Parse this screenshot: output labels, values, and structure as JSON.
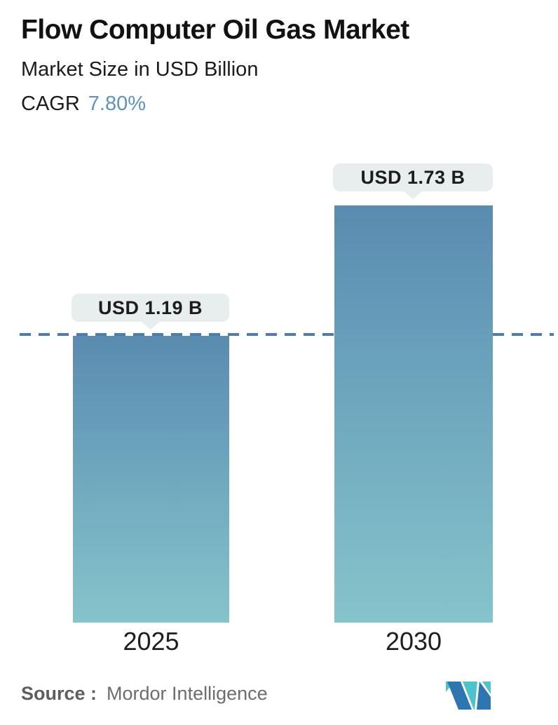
{
  "header": {
    "title": "Flow Computer Oil Gas Market",
    "subtitle": "Market Size in USD Billion",
    "cagr_label": "CAGR",
    "cagr_value": "7.80%"
  },
  "chart_data": {
    "type": "bar",
    "title": "Flow Computer Oil Gas Market",
    "subtitle": "Market Size in USD Billion",
    "cagr": "7.80%",
    "unit": "USD Billion",
    "categories": [
      "2025",
      "2030"
    ],
    "values": [
      1.19,
      1.73
    ],
    "value_labels": [
      "USD 1.19 B",
      "USD 1.73 B"
    ],
    "ylim": [
      0,
      1.9
    ],
    "grid": "off",
    "legend": "none",
    "reference_line": {
      "value": 1.19,
      "style": "dashed",
      "color": "#4e7dab"
    },
    "bar_gradient_top": "#5a8bb0",
    "bar_gradient_bottom": "#85c4cb",
    "tooltip_bg": "#e8eded",
    "accent_blue": "#5f92bd"
  },
  "footer": {
    "source_label": "Source :",
    "source_value": "Mordor Intelligence",
    "logo_name": "mordor-intelligence-logo",
    "logo_teal": "#4fc3cb",
    "logo_blue": "#2d76af"
  }
}
